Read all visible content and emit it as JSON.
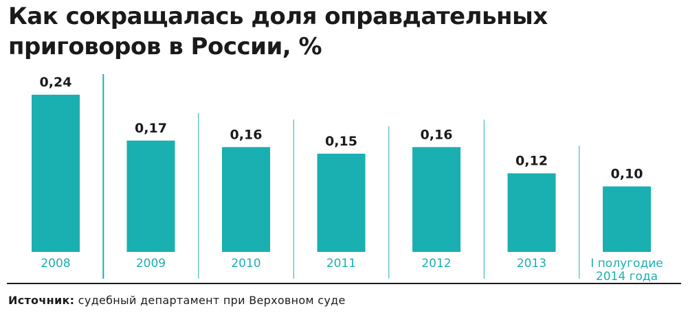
{
  "colors": {
    "bar": "#1aafb1",
    "separator": "#1aafb1",
    "tick_text": "#1aafb1",
    "baseline": "#1a1a1a",
    "text": "#1a1a1a"
  },
  "chart_data": {
    "type": "bar",
    "title": "Как сокращалась доля оправдательных приговоров в России, %",
    "xlabel": "",
    "ylabel": "",
    "ylim": [
      0,
      0.24
    ],
    "grid": false,
    "legend": "none",
    "categories": [
      "2008",
      "2009",
      "2010",
      "2011",
      "2012",
      "2013",
      "I полугодие 2014 года"
    ],
    "category_lines": [
      [
        "2008"
      ],
      [
        "2009"
      ],
      [
        "2010"
      ],
      [
        "2011"
      ],
      [
        "2012"
      ],
      [
        "2013"
      ],
      [
        "I полугодие",
        "2014 года"
      ]
    ],
    "values": [
      0.24,
      0.17,
      0.16,
      0.15,
      0.16,
      0.12,
      0.1
    ],
    "value_labels": [
      "0,24",
      "0,17",
      "0,16",
      "0,15",
      "0,16",
      "0,12",
      "0,10"
    ]
  },
  "source": {
    "label": "Источник:",
    "text": "судебный департамент при Верховном суде"
  }
}
